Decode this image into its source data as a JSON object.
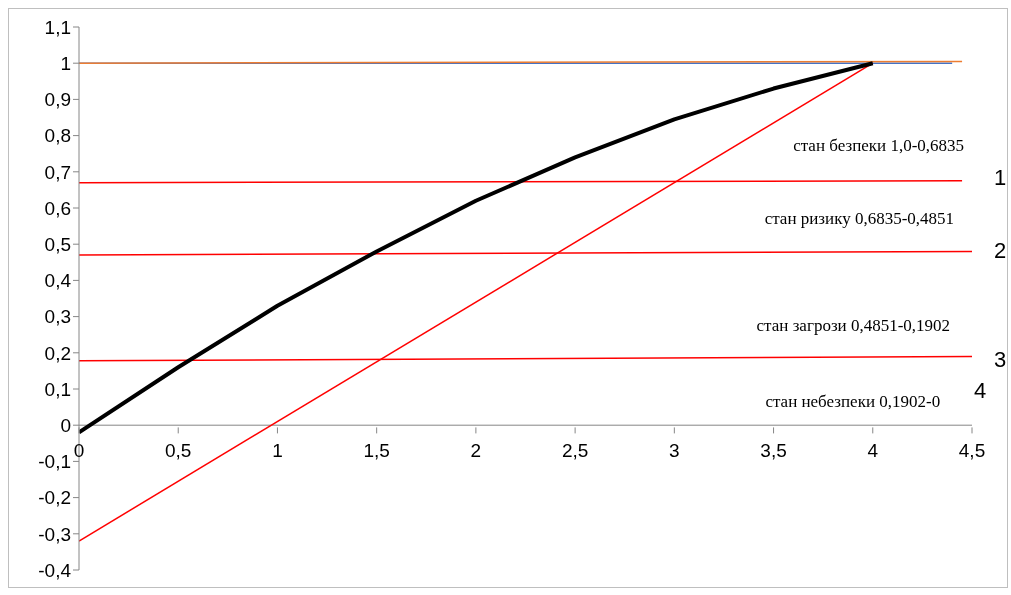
{
  "chart_data": {
    "type": "line",
    "xlim": [
      0,
      4.5
    ],
    "ylim": [
      -0.4,
      1.1
    ],
    "xticks": [
      0,
      {
        "value": 0.5,
        "label": "0,5"
      },
      1,
      {
        "value": 1.5,
        "label": "1,5"
      },
      2,
      {
        "value": 2.5,
        "label": "2,5"
      },
      3,
      {
        "value": 3.5,
        "label": "3,5"
      },
      4,
      {
        "value": 4.5,
        "label": "4,5"
      }
    ],
    "yticks": [
      {
        "value": -0.4,
        "label": "-0,4"
      },
      {
        "value": -0.3,
        "label": "-0,3"
      },
      {
        "value": -0.2,
        "label": "-0,2"
      },
      {
        "value": -0.1,
        "label": "-0,1"
      },
      0,
      {
        "value": 0.1,
        "label": "0,1"
      },
      {
        "value": 0.2,
        "label": "0,2"
      },
      {
        "value": 0.3,
        "label": "0,3"
      },
      {
        "value": 0.4,
        "label": "0,4"
      },
      {
        "value": 0.5,
        "label": "0,5"
      },
      {
        "value": 0.6,
        "label": "0,6"
      },
      {
        "value": 0.7,
        "label": "0,7"
      },
      {
        "value": 0.8,
        "label": "0,8"
      },
      {
        "value": 0.9,
        "label": "0,9"
      },
      1,
      {
        "value": 1.1,
        "label": "1,1"
      }
    ],
    "marker": "none",
    "line_style": "solid",
    "series": [
      {
        "color": "#4472c4",
        "x": [
          0,
          4.4
        ],
        "values": [
          1,
          1
        ]
      },
      {
        "color": "#ed7d31",
        "x": [
          0,
          4.45
        ],
        "values": [
          1,
          1.005
        ]
      },
      {
        "color": "#ff0000",
        "x": [
          0,
          4.45
        ],
        "values": [
          0.67,
          0.675
        ]
      },
      {
        "color": "#ff0000",
        "x": [
          0,
          4.5
        ],
        "values": [
          0.47,
          0.48
        ]
      },
      {
        "color": "#ff0000",
        "x": [
          0,
          4.5
        ],
        "values": [
          0.178,
          0.19
        ]
      },
      {
        "color": "#ff0000",
        "x": [
          0,
          4
        ],
        "values": [
          -0.32,
          1
        ]
      },
      {
        "color": "#000000",
        "x": [
          0,
          0.5,
          1,
          1.5,
          2,
          2.5,
          3,
          3.5,
          4
        ],
        "values": [
          -0.02,
          0.16,
          0.33,
          0.48,
          0.62,
          0.74,
          0.845,
          0.93,
          1
        ]
      }
    ],
    "annotations": [
      "стан безпеки 1,0-0,6835",
      "стан ризику 0,6835-0,4851",
      "стан загрози 0,4851-0,1902",
      "стан небезпеки 0,1902-0",
      "1",
      "2",
      "3",
      "4"
    ]
  }
}
